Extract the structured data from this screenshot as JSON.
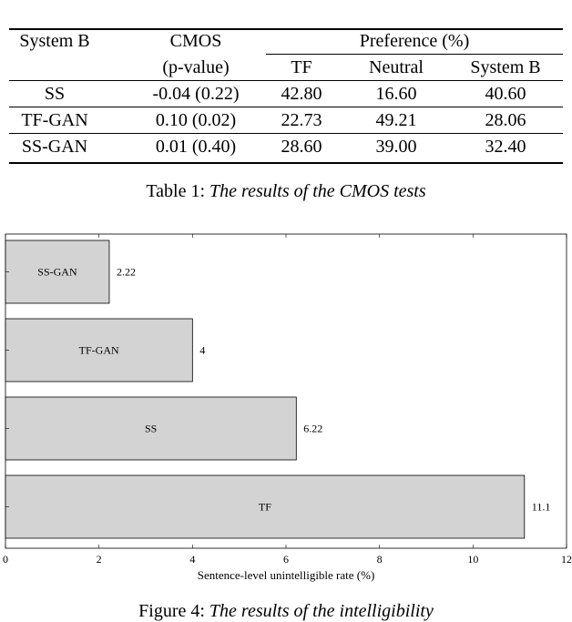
{
  "table": {
    "headers": {
      "col1": "System B",
      "col2": "CMOS",
      "col2_sub": "(p-value)",
      "group": "Preference (%)",
      "sub": [
        "TF",
        "Neutral",
        "System B"
      ]
    },
    "rows": [
      [
        "SS",
        "-0.04 (0.22)",
        "42.80",
        "16.60",
        "40.60"
      ],
      [
        "TF-GAN",
        "0.10 (0.02)",
        "22.73",
        "49.21",
        "28.06"
      ],
      [
        "SS-GAN",
        "0.01 (0.40)",
        "28.60",
        "39.00",
        "32.40"
      ]
    ],
    "caption_label": "Table 1:",
    "caption_text": "The results of the CMOS tests"
  },
  "chart_data": {
    "type": "bar",
    "orientation": "horizontal",
    "categories": [
      "SS-GAN",
      "TF-GAN",
      "SS",
      "TF"
    ],
    "values": [
      2.22,
      4,
      6.22,
      11.1
    ],
    "value_labels": [
      "2.22",
      "4",
      "6.22",
      "11.1"
    ],
    "xlabel": "Sentence-level unintelligible rate (%)",
    "xlim": [
      0,
      12
    ],
    "xticks": [
      "0",
      "2",
      "4",
      "6",
      "8",
      "10",
      "12"
    ],
    "bar_color": "#d3d3d3",
    "grid": false
  },
  "figure_caption": {
    "label": "Figure 4:",
    "text": "The results of the intelligibility"
  }
}
